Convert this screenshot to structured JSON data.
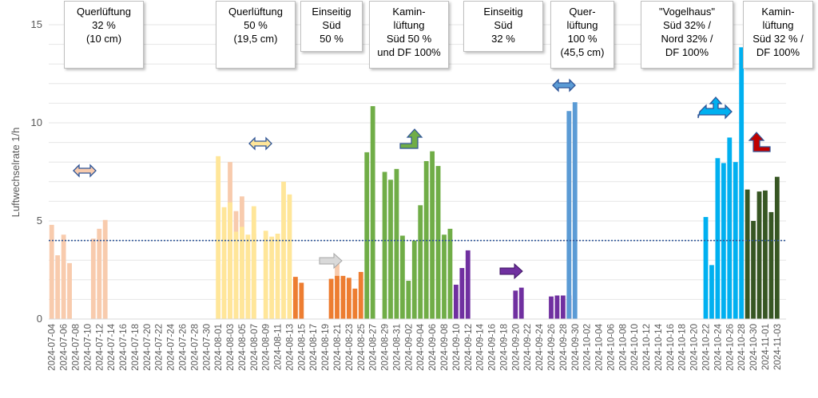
{
  "chart_data": {
    "type": "bar",
    "title": "",
    "xlabel": "",
    "ylabel": "Luftwechselrate 1/h",
    "ylim": [
      0,
      15
    ],
    "yticks": [
      0,
      5,
      10,
      15
    ],
    "reference_line": 4,
    "start_date": "2024-07-04",
    "end_date": "2024-11-04",
    "xtick_every_days": 2,
    "groups": [
      {
        "name": "Querlüftung 32 % (10 cm)",
        "color": "#f8cbad",
        "start": "2024-07-04",
        "values": [
          4.8,
          3.25,
          4.3,
          2.85,
          null,
          null,
          null,
          4.1,
          4.6,
          5.05,
          null,
          null,
          null,
          null,
          null,
          null,
          null,
          null,
          null,
          null,
          null,
          null,
          null,
          null,
          null,
          null,
          null,
          null,
          null,
          2.8,
          8.0,
          5.5,
          6.25,
          3.5,
          4.35,
          null,
          null,
          null,
          null,
          null,
          null,
          null,
          null,
          null,
          null,
          null,
          null,
          null,
          3.05
        ]
      },
      {
        "name": "Querlüftung 50 % (19,5 cm)",
        "color": "#ffe699",
        "start": "2024-08-01",
        "values": [
          8.3,
          5.7,
          5.95,
          4.45,
          4.7,
          4.3,
          5.75,
          null,
          4.5,
          4.2,
          4.35,
          7.0,
          6.35
        ]
      },
      {
        "name": "Einseitig Süd 50 %",
        "color": "#ed7d31",
        "start": "2024-08-14",
        "values": [
          2.15,
          1.85,
          null,
          null,
          null,
          null,
          2.05,
          2.2,
          2.2,
          2.1,
          1.55,
          2.4
        ]
      },
      {
        "name": "Kaminlüftung Süd 50 % und DF 100%",
        "color": "#70ad47",
        "start": "2024-08-26",
        "values": [
          8.5,
          10.85,
          null,
          7.5,
          7.1,
          7.65,
          4.25,
          1.95,
          4.0,
          5.8,
          8.05,
          8.55,
          7.8,
          4.3,
          4.6
        ]
      },
      {
        "name": "Einseitig Süd 32 %",
        "color": "#7030a0",
        "start": "2024-09-10",
        "values": [
          1.75,
          2.6,
          3.5,
          null,
          null,
          null,
          null,
          null,
          null,
          null,
          1.45,
          1.6,
          null,
          null,
          null,
          null,
          1.15,
          1.2,
          1.2,
          1.2
        ]
      },
      {
        "name": "Querlüftung 100 % (45,5 cm)",
        "color": "#5b9bd5",
        "start": "2024-09-29",
        "values": [
          10.6,
          11.05
        ]
      },
      {
        "name": "\"Vogelhaus\" Süd 32% / Nord 32% / DF 100%",
        "color": "#00b0f0",
        "start": "2024-10-22",
        "values": [
          5.2,
          2.75,
          8.2,
          7.95,
          9.25,
          8.0,
          13.85
        ]
      },
      {
        "name": "Kaminlüftung Süd 32 % / DF 100%",
        "color": "#375623",
        "start": "2024-10-29",
        "values": [
          6.6,
          5.0,
          6.5,
          6.55,
          5.45,
          7.25
        ]
      }
    ]
  },
  "annotations": [
    {
      "lines": [
        "Querlüftung",
        "32 %",
        "(10 cm)"
      ]
    },
    {
      "lines": [
        "Querlüftung",
        "50 %",
        "(19,5 cm)"
      ]
    },
    {
      "lines": [
        "Einseitig",
        "Süd",
        "50 %"
      ]
    },
    {
      "lines": [
        "Kamin-",
        "lüftung",
        "Süd 50 %",
        "und DF 100%"
      ]
    },
    {
      "lines": [
        "Einseitig",
        "Süd",
        "32 %"
      ]
    },
    {
      "lines": [
        "Quer-",
        "lüftung",
        "100 %",
        "(45,5 cm)"
      ]
    },
    {
      "lines": [
        "\"Vogelhaus\"",
        "Süd 32% /",
        "Nord 32% /",
        "DF 100%"
      ]
    },
    {
      "lines": [
        "Kamin-",
        "lüftung",
        "Süd 32 % /",
        "DF 100%"
      ]
    }
  ],
  "icons": [
    {
      "name": "double-arrow-icon",
      "color": "#f8cbad"
    },
    {
      "name": "double-arrow-icon",
      "color": "#ffe699"
    },
    {
      "name": "right-arrow-icon",
      "color": "#d9d9d9"
    },
    {
      "name": "up-right-arrow-icon",
      "color": "#70ad47"
    },
    {
      "name": "right-arrow-icon",
      "color": "#7030a0"
    },
    {
      "name": "double-arrow-icon",
      "color": "#5b9bd5"
    },
    {
      "name": "cross-arrow-icon",
      "color": "#00b0f0"
    },
    {
      "name": "up-left-arrow-icon",
      "color": "#c00000"
    }
  ]
}
